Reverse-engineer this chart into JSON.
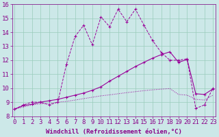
{
  "xlabel": "Windchill (Refroidissement éolien,°C)",
  "bg_color": "#cce8e8",
  "line_color": "#990099",
  "xmin": 0,
  "xmax": 23,
  "ymin": 8,
  "ymax": 16,
  "xticks": [
    0,
    1,
    2,
    3,
    4,
    5,
    6,
    7,
    8,
    9,
    10,
    11,
    12,
    13,
    14,
    15,
    16,
    17,
    18,
    19,
    20,
    21,
    22,
    23
  ],
  "yticks": [
    8,
    9,
    10,
    11,
    12,
    13,
    14,
    15,
    16
  ],
  "line1_x": [
    0,
    1,
    2,
    3,
    4,
    5,
    6,
    7,
    8,
    9,
    10,
    11,
    12,
    13,
    14,
    15,
    16,
    17,
    18,
    19,
    20,
    21,
    22,
    23
  ],
  "line1_y": [
    8.5,
    8.8,
    9.0,
    9.0,
    8.8,
    9.0,
    11.7,
    13.7,
    14.5,
    13.1,
    15.1,
    14.4,
    15.65,
    14.75,
    15.65,
    14.5,
    13.4,
    12.55,
    12.0,
    12.0,
    12.1,
    8.55,
    8.8,
    10.0
  ],
  "line2_x": [
    0,
    1,
    2,
    3,
    4,
    5,
    6,
    7,
    8,
    9,
    10,
    11,
    12,
    13,
    14,
    15,
    16,
    17,
    18,
    19,
    20,
    21,
    22,
    23
  ],
  "line2_y": [
    8.5,
    8.75,
    8.85,
    9.0,
    9.1,
    9.2,
    9.35,
    9.5,
    9.65,
    9.85,
    10.1,
    10.5,
    10.85,
    11.2,
    11.55,
    11.85,
    12.15,
    12.4,
    12.6,
    11.85,
    12.05,
    9.6,
    9.55,
    9.95
  ],
  "line3_x": [
    0,
    1,
    2,
    3,
    4,
    5,
    6,
    7,
    8,
    9,
    10,
    11,
    12,
    13,
    14,
    15,
    16,
    17,
    18,
    19,
    20,
    21,
    22,
    23
  ],
  "line3_y": [
    8.5,
    8.65,
    8.8,
    8.88,
    8.9,
    9.0,
    9.05,
    9.15,
    9.25,
    9.35,
    9.45,
    9.52,
    9.6,
    9.68,
    9.75,
    9.82,
    9.88,
    9.93,
    9.97,
    9.55,
    9.5,
    9.2,
    9.15,
    9.5
  ],
  "grid_color": "#99ccbb",
  "font_color": "#880088",
  "font_size": 6.5,
  "marker": "+"
}
